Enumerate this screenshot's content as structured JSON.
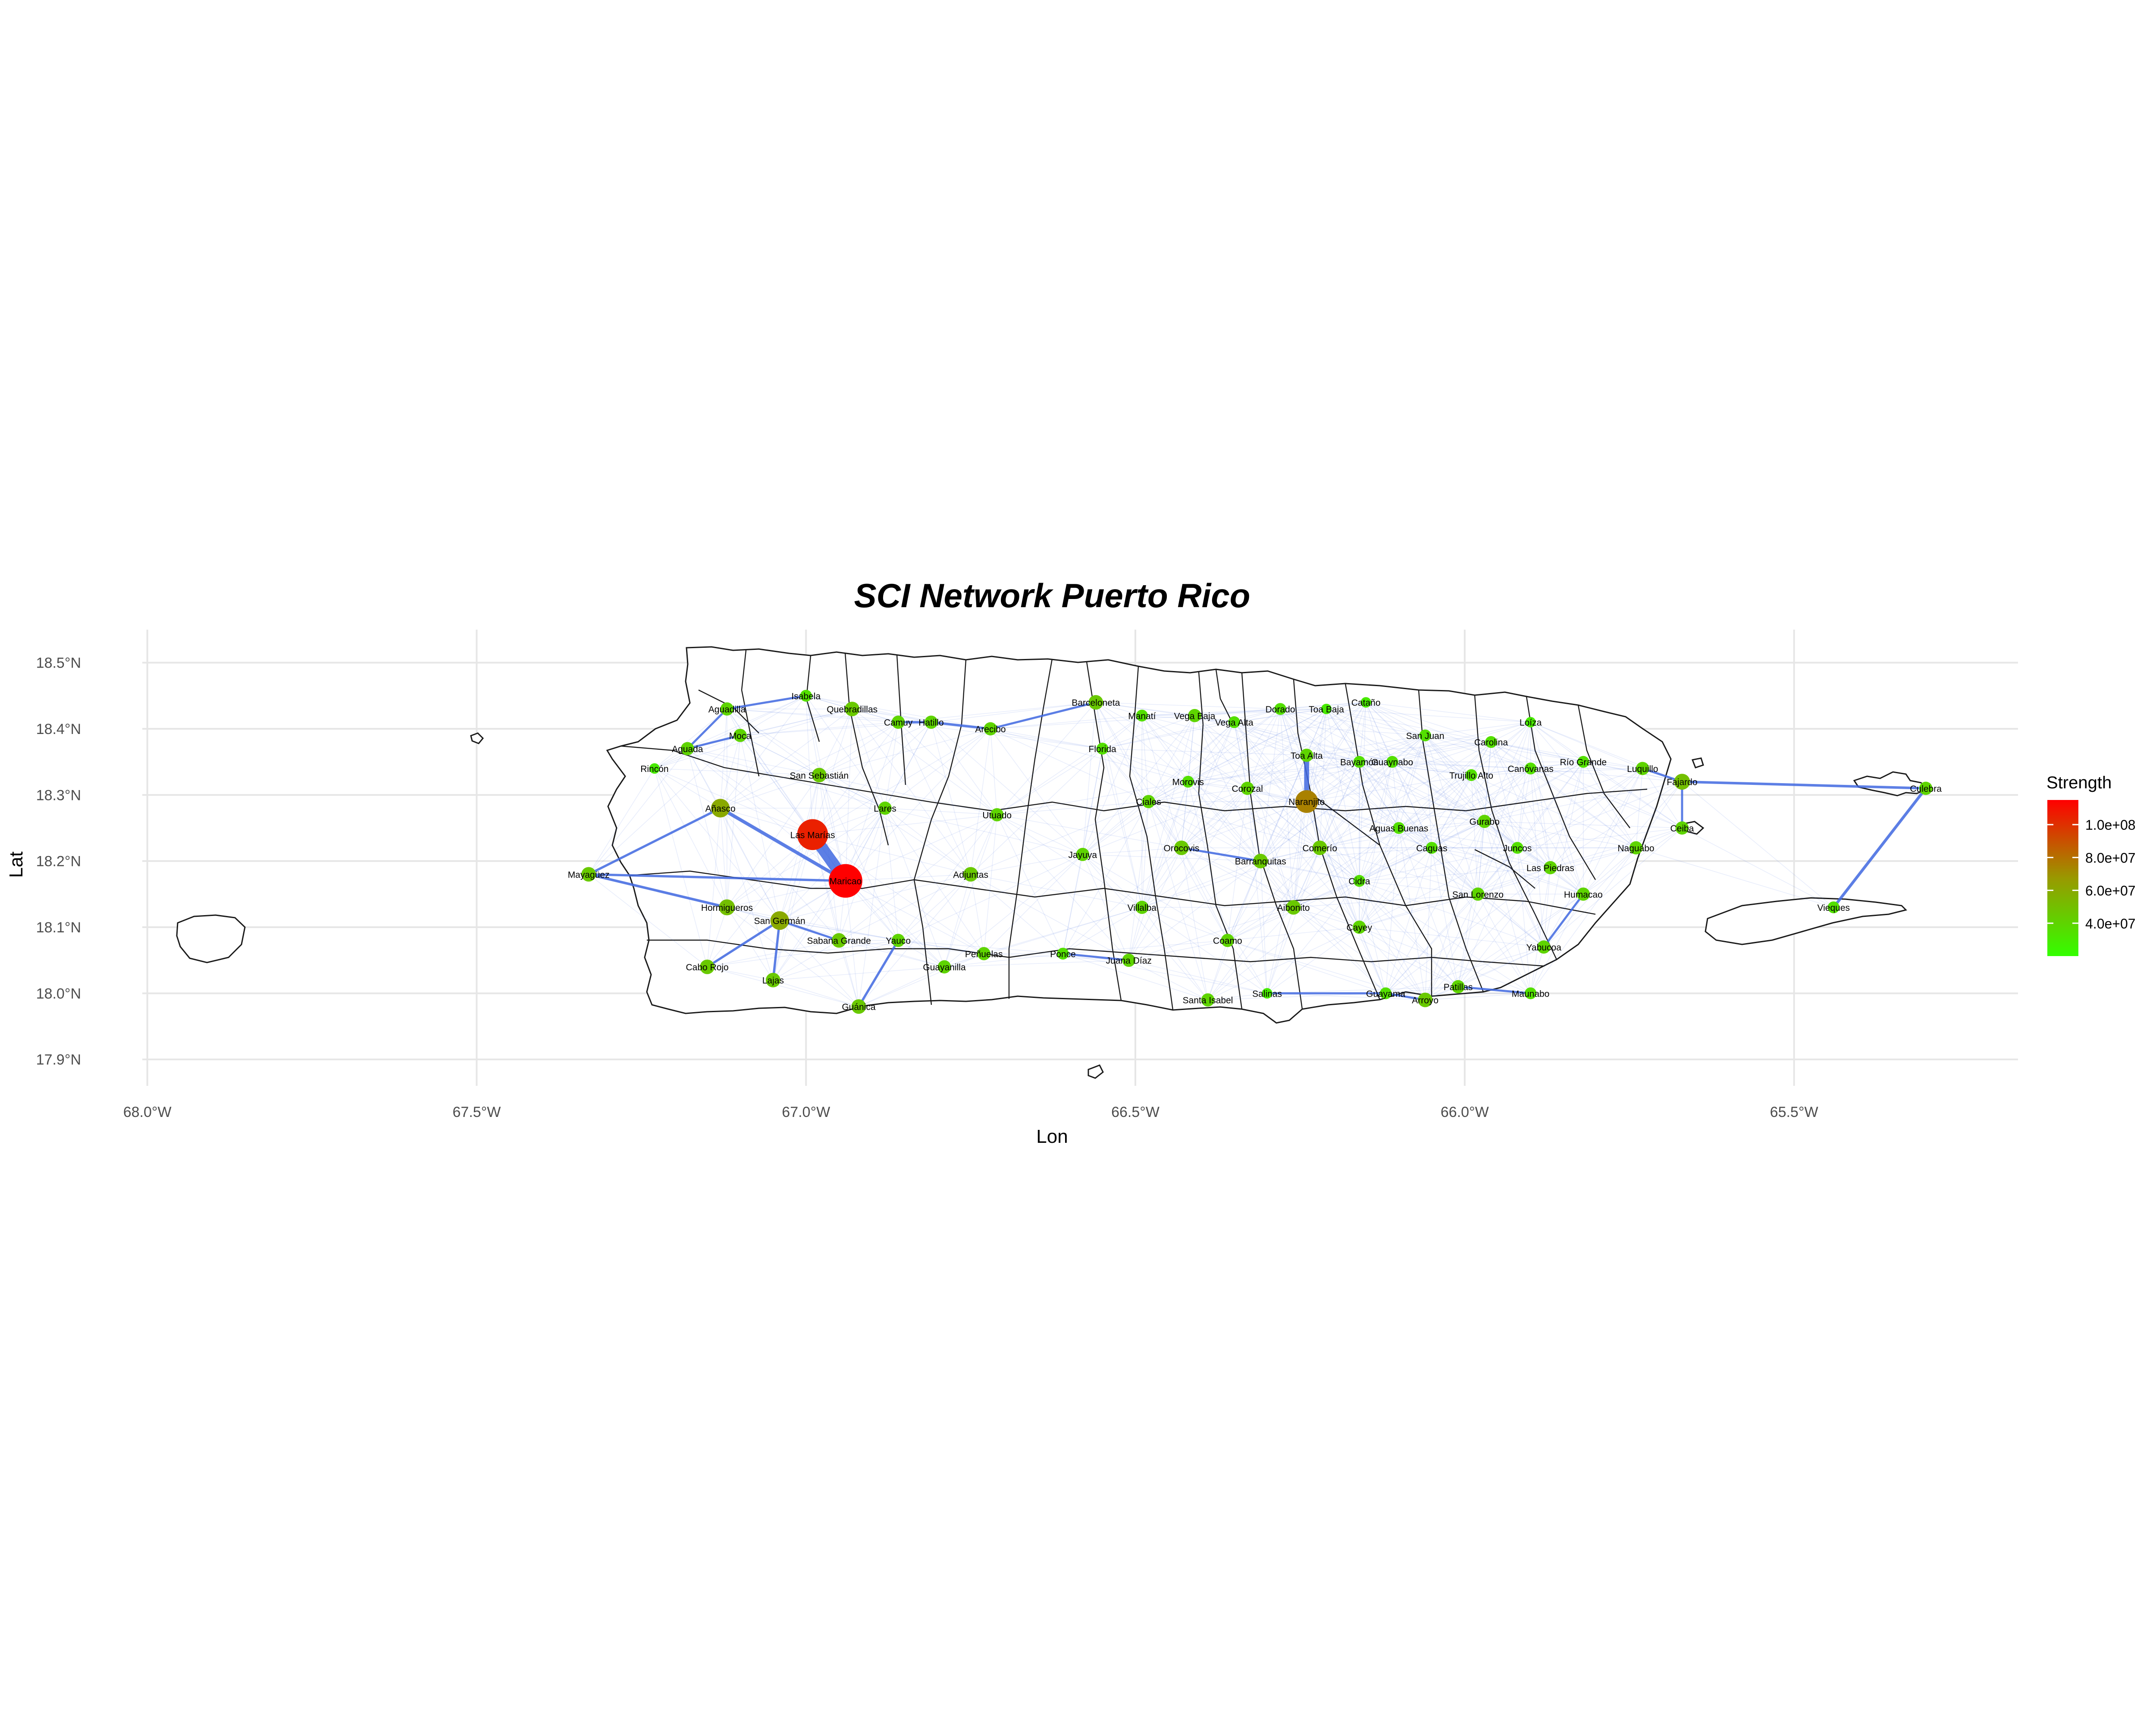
{
  "title": "SCI Network Puerto Rico",
  "x_axis": {
    "title": "Lon",
    "ticks": [
      {
        "value": -68.0,
        "label": "68.0°W"
      },
      {
        "value": -67.5,
        "label": "67.5°W"
      },
      {
        "value": -67.0,
        "label": "67.0°W"
      },
      {
        "value": -66.5,
        "label": "66.5°W"
      },
      {
        "value": -66.0,
        "label": "66.0°W"
      },
      {
        "value": -65.5,
        "label": "65.5°W"
      }
    ]
  },
  "y_axis": {
    "title": "Lat",
    "ticks": [
      {
        "value": 18.5,
        "label": "18.5°N"
      },
      {
        "value": 18.4,
        "label": "18.4°N"
      },
      {
        "value": 18.3,
        "label": "18.3°N"
      },
      {
        "value": 18.2,
        "label": "18.2°N"
      },
      {
        "value": 18.1,
        "label": "18.1°N"
      },
      {
        "value": 18.0,
        "label": "18.0°N"
      },
      {
        "value": 17.9,
        "label": "17.9°N"
      }
    ]
  },
  "legend": {
    "title": "Strength",
    "placement": "right",
    "min": 20000000,
    "max": 115000000,
    "colors": {
      "low": "#33ff00",
      "mid": "#999900",
      "high": "#ff0000"
    },
    "ticks": [
      {
        "value": 100000000,
        "label": "1.0e+08"
      },
      {
        "value": 80000000,
        "label": "8.0e+07"
      },
      {
        "value": 60000000,
        "label": "6.0e+07"
      },
      {
        "value": 40000000,
        "label": "4.0e+07"
      }
    ]
  },
  "colors": {
    "edge": "#4169e1",
    "border": "#1a1a1a",
    "grid": "#e6e6e6"
  },
  "chart_data": {
    "type": "scatter",
    "xlim": [
      -68.06,
      -65.16
    ],
    "ylim": [
      17.86,
      18.55
    ],
    "grid": true,
    "nodes": [
      {
        "name": "Aguadilla",
        "lon": -67.12,
        "lat": 18.43,
        "strength": 40000000
      },
      {
        "name": "Isabela",
        "lon": -67.0,
        "lat": 18.45,
        "strength": 35000000
      },
      {
        "name": "Quebradillas",
        "lon": -66.93,
        "lat": 18.43,
        "strength": 45000000
      },
      {
        "name": "Camuy",
        "lon": -66.86,
        "lat": 18.41,
        "strength": 40000000
      },
      {
        "name": "Hatillo",
        "lon": -66.81,
        "lat": 18.41,
        "strength": 40000000
      },
      {
        "name": "Arecibo",
        "lon": -66.72,
        "lat": 18.4,
        "strength": 40000000
      },
      {
        "name": "Barceloneta",
        "lon": -66.56,
        "lat": 18.44,
        "strength": 45000000
      },
      {
        "name": "Manatí",
        "lon": -66.49,
        "lat": 18.42,
        "strength": 35000000
      },
      {
        "name": "Vega Baja",
        "lon": -66.41,
        "lat": 18.42,
        "strength": 40000000
      },
      {
        "name": "Vega Alta",
        "lon": -66.35,
        "lat": 18.41,
        "strength": 35000000
      },
      {
        "name": "Dorado",
        "lon": -66.28,
        "lat": 18.43,
        "strength": 35000000
      },
      {
        "name": "Toa Baja",
        "lon": -66.21,
        "lat": 18.43,
        "strength": 30000000
      },
      {
        "name": "Cataño",
        "lon": -66.15,
        "lat": 18.44,
        "strength": 30000000
      },
      {
        "name": "Florida",
        "lon": -66.55,
        "lat": 18.37,
        "strength": 35000000
      },
      {
        "name": "Aguada",
        "lon": -67.18,
        "lat": 18.37,
        "strength": 40000000
      },
      {
        "name": "Moca",
        "lon": -67.1,
        "lat": 18.39,
        "strength": 40000000
      },
      {
        "name": "Rincón",
        "lon": -67.23,
        "lat": 18.34,
        "strength": 30000000
      },
      {
        "name": "San Sebastián",
        "lon": -66.98,
        "lat": 18.33,
        "strength": 45000000
      },
      {
        "name": "Añasco",
        "lon": -67.13,
        "lat": 18.28,
        "strength": 60000000
      },
      {
        "name": "Lares",
        "lon": -66.88,
        "lat": 18.28,
        "strength": 40000000
      },
      {
        "name": "Utuado",
        "lon": -66.71,
        "lat": 18.27,
        "strength": 40000000
      },
      {
        "name": "Ciales",
        "lon": -66.48,
        "lat": 18.29,
        "strength": 40000000
      },
      {
        "name": "Morovis",
        "lon": -66.42,
        "lat": 18.32,
        "strength": 35000000
      },
      {
        "name": "Corozal",
        "lon": -66.33,
        "lat": 18.31,
        "strength": 40000000
      },
      {
        "name": "Toa Alta",
        "lon": -66.24,
        "lat": 18.36,
        "strength": 40000000
      },
      {
        "name": "Naranjito",
        "lon": -66.24,
        "lat": 18.29,
        "strength": 75000000
      },
      {
        "name": "Bayamón",
        "lon": -66.16,
        "lat": 18.35,
        "strength": 35000000
      },
      {
        "name": "Guaynabo",
        "lon": -66.11,
        "lat": 18.35,
        "strength": 35000000
      },
      {
        "name": "San Juan",
        "lon": -66.06,
        "lat": 18.39,
        "strength": 35000000
      },
      {
        "name": "Carolina",
        "lon": -65.96,
        "lat": 18.38,
        "strength": 35000000
      },
      {
        "name": "Loíza",
        "lon": -65.9,
        "lat": 18.41,
        "strength": 30000000
      },
      {
        "name": "Trujillo Alto",
        "lon": -65.99,
        "lat": 18.33,
        "strength": 35000000
      },
      {
        "name": "Canóvanas",
        "lon": -65.9,
        "lat": 18.34,
        "strength": 35000000
      },
      {
        "name": "Río Grande",
        "lon": -65.82,
        "lat": 18.35,
        "strength": 35000000
      },
      {
        "name": "Luquillo",
        "lon": -65.73,
        "lat": 18.34,
        "strength": 40000000
      },
      {
        "name": "Fajardo",
        "lon": -65.67,
        "lat": 18.32,
        "strength": 50000000
      },
      {
        "name": "Culebra",
        "lon": -65.3,
        "lat": 18.31,
        "strength": 40000000
      },
      {
        "name": "Mayagüez",
        "lon": -67.33,
        "lat": 18.18,
        "strength": 45000000
      },
      {
        "name": "Las Marías",
        "lon": -66.99,
        "lat": 18.24,
        "strength": 105000000
      },
      {
        "name": "Maricao",
        "lon": -66.94,
        "lat": 18.17,
        "strength": 115000000
      },
      {
        "name": "Adjuntas",
        "lon": -66.75,
        "lat": 18.18,
        "strength": 45000000
      },
      {
        "name": "Jayuya",
        "lon": -66.58,
        "lat": 18.21,
        "strength": 40000000
      },
      {
        "name": "Orocovis",
        "lon": -66.43,
        "lat": 18.22,
        "strength": 45000000
      },
      {
        "name": "Barranquitas",
        "lon": -66.31,
        "lat": 18.2,
        "strength": 45000000
      },
      {
        "name": "Comerío",
        "lon": -66.22,
        "lat": 18.22,
        "strength": 45000000
      },
      {
        "name": "Aguas Buenas",
        "lon": -66.1,
        "lat": 18.25,
        "strength": 35000000
      },
      {
        "name": "Gurabo",
        "lon": -65.97,
        "lat": 18.26,
        "strength": 40000000
      },
      {
        "name": "Caguas",
        "lon": -66.05,
        "lat": 18.22,
        "strength": 35000000
      },
      {
        "name": "Juncos",
        "lon": -65.92,
        "lat": 18.22,
        "strength": 35000000
      },
      {
        "name": "Las Piedras",
        "lon": -65.87,
        "lat": 18.19,
        "strength": 40000000
      },
      {
        "name": "Naguabo",
        "lon": -65.74,
        "lat": 18.22,
        "strength": 40000000
      },
      {
        "name": "Ceiba",
        "lon": -65.67,
        "lat": 18.25,
        "strength": 40000000
      },
      {
        "name": "Cidra",
        "lon": -66.16,
        "lat": 18.17,
        "strength": 35000000
      },
      {
        "name": "San Lorenzo",
        "lon": -65.98,
        "lat": 18.15,
        "strength": 40000000
      },
      {
        "name": "Humacao",
        "lon": -65.82,
        "lat": 18.15,
        "strength": 40000000
      },
      {
        "name": "Vieques",
        "lon": -65.44,
        "lat": 18.13,
        "strength": 35000000
      },
      {
        "name": "Hormigueros",
        "lon": -67.12,
        "lat": 18.13,
        "strength": 50000000
      },
      {
        "name": "San Germán",
        "lon": -67.04,
        "lat": 18.11,
        "strength": 60000000
      },
      {
        "name": "Sabana Grande",
        "lon": -66.95,
        "lat": 18.08,
        "strength": 45000000
      },
      {
        "name": "Yauco",
        "lon": -66.86,
        "lat": 18.08,
        "strength": 40000000
      },
      {
        "name": "Villalba",
        "lon": -66.49,
        "lat": 18.13,
        "strength": 40000000
      },
      {
        "name": "Aibonito",
        "lon": -66.26,
        "lat": 18.13,
        "strength": 45000000
      },
      {
        "name": "Cayey",
        "lon": -66.16,
        "lat": 18.1,
        "strength": 40000000
      },
      {
        "name": "Coamo",
        "lon": -66.36,
        "lat": 18.08,
        "strength": 40000000
      },
      {
        "name": "Peñuelas",
        "lon": -66.73,
        "lat": 18.06,
        "strength": 40000000
      },
      {
        "name": "Ponce",
        "lon": -66.61,
        "lat": 18.06,
        "strength": 35000000
      },
      {
        "name": "Juana Díaz",
        "lon": -66.51,
        "lat": 18.05,
        "strength": 40000000
      },
      {
        "name": "Guayanilla",
        "lon": -66.79,
        "lat": 18.04,
        "strength": 40000000
      },
      {
        "name": "Yabucoa",
        "lon": -65.88,
        "lat": 18.07,
        "strength": 40000000
      },
      {
        "name": "Cabo Rojo",
        "lon": -67.15,
        "lat": 18.04,
        "strength": 45000000
      },
      {
        "name": "Lajas",
        "lon": -67.05,
        "lat": 18.02,
        "strength": 45000000
      },
      {
        "name": "Guánica",
        "lon": -66.92,
        "lat": 17.98,
        "strength": 45000000
      },
      {
        "name": "Santa Isabel",
        "lon": -66.39,
        "lat": 17.99,
        "strength": 40000000
      },
      {
        "name": "Salinas",
        "lon": -66.3,
        "lat": 18.0,
        "strength": 30000000
      },
      {
        "name": "Guayama",
        "lon": -66.12,
        "lat": 18.0,
        "strength": 35000000
      },
      {
        "name": "Arroyo",
        "lon": -66.06,
        "lat": 17.99,
        "strength": 45000000
      },
      {
        "name": "Patillas",
        "lon": -66.01,
        "lat": 18.01,
        "strength": 40000000
      },
      {
        "name": "Maunabo",
        "lon": -65.9,
        "lat": 18.0,
        "strength": 35000000
      }
    ],
    "strong_edges": [
      {
        "from": "Las Marías",
        "to": "Maricao",
        "weight": 1.0
      },
      {
        "from": "Toa Alta",
        "to": "Naranjito",
        "weight": 0.35
      },
      {
        "from": "Añasco",
        "to": "Maricao",
        "weight": 0.2
      },
      {
        "from": "Culebra",
        "to": "Vieques",
        "weight": 0.15
      },
      {
        "from": "Culebra",
        "to": "Fajardo",
        "weight": 0.12
      },
      {
        "from": "Mayagüez",
        "to": "Hormigueros",
        "weight": 0.12
      },
      {
        "from": "Mayagüez",
        "to": "Maricao",
        "weight": 0.1
      },
      {
        "from": "Mayagüez",
        "to": "Añasco",
        "weight": 0.1
      },
      {
        "from": "Cabo Rojo",
        "to": "San Germán",
        "weight": 0.1
      },
      {
        "from": "Lajas",
        "to": "San Germán",
        "weight": 0.1
      },
      {
        "from": "Guánica",
        "to": "Yauco",
        "weight": 0.1
      },
      {
        "from": "Camuy",
        "to": "Hatillo",
        "weight": 0.1
      },
      {
        "from": "Hatillo",
        "to": "Arecibo",
        "weight": 0.1
      },
      {
        "from": "Arecibo",
        "to": "Barceloneta",
        "weight": 0.08
      },
      {
        "from": "Aguadilla",
        "to": "Isabela",
        "weight": 0.08
      },
      {
        "from": "Aguadilla",
        "to": "Aguada",
        "weight": 0.08
      },
      {
        "from": "Moca",
        "to": "Aguada",
        "weight": 0.08
      },
      {
        "from": "Ponce",
        "to": "Juana Díaz",
        "weight": 0.08
      },
      {
        "from": "Salinas",
        "to": "Guayama",
        "weight": 0.08
      },
      {
        "from": "Guayama",
        "to": "Arroyo",
        "weight": 0.08
      },
      {
        "from": "Patillas",
        "to": "Maunabo",
        "weight": 0.08
      },
      {
        "from": "Humacao",
        "to": "Yabucoa",
        "weight": 0.08
      },
      {
        "from": "Fajardo",
        "to": "Luquillo",
        "weight": 0.08
      },
      {
        "from": "Fajardo",
        "to": "Ceiba",
        "weight": 0.08
      },
      {
        "from": "Orocovis",
        "to": "Barranquitas",
        "weight": 0.08
      },
      {
        "from": "Sabana Grande",
        "to": "San Germán",
        "weight": 0.08
      }
    ]
  }
}
